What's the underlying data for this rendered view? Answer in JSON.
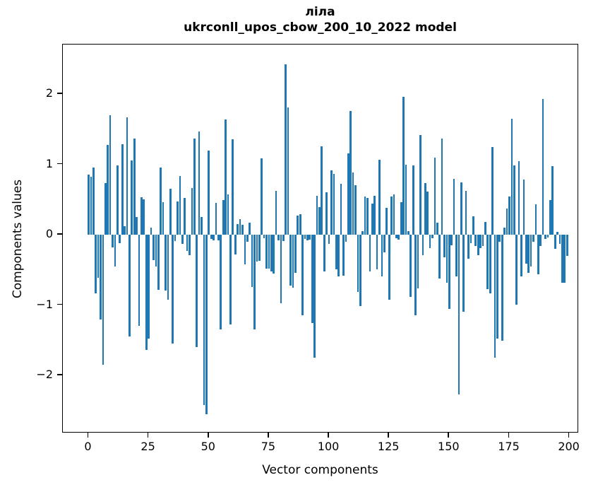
{
  "chart_data": {
    "type": "bar",
    "title_line1": "ліла",
    "title_line2": "ukrconll_upos_cbow_200_10_2022 model",
    "xlabel": "Vector components",
    "ylabel": "Components values",
    "x_description": "component indices 0 to 199",
    "values": [
      0.85,
      0.82,
      0.95,
      -0.83,
      -0.61,
      -1.21,
      -1.85,
      0.73,
      1.28,
      1.7,
      -0.18,
      -0.45,
      0.99,
      -0.12,
      1.29,
      0.12,
      1.67,
      -1.45,
      1.06,
      1.37,
      0.25,
      -1.3,
      0.53,
      0.5,
      -1.64,
      -1.48,
      0.1,
      -0.36,
      -0.45,
      -0.78,
      0.95,
      0.46,
      -0.79,
      -0.92,
      0.65,
      -1.55,
      -0.09,
      0.47,
      0.83,
      -0.13,
      0.52,
      -0.23,
      -0.29,
      0.66,
      1.37,
      -1.6,
      1.47,
      0.25,
      -2.42,
      -2.55,
      1.2,
      -0.06,
      -0.08,
      0.45,
      -0.08,
      -1.35,
      0.49,
      1.64,
      0.57,
      -1.28,
      1.36,
      -0.28,
      0.15,
      0.22,
      0.14,
      -0.42,
      -0.1,
      0.17,
      -0.74,
      -1.35,
      -0.38,
      -0.37,
      1.09,
      -0.05,
      -0.48,
      -0.48,
      -0.52,
      -0.55,
      0.62,
      -0.08,
      -0.97,
      -0.09,
      2.42,
      1.81,
      -0.72,
      -0.75,
      -0.54,
      0.27,
      0.29,
      -1.15,
      -0.06,
      -0.08,
      -0.07,
      -1.26,
      -1.75,
      0.55,
      0.39,
      1.26,
      -0.52,
      0.6,
      -0.13,
      0.91,
      0.86,
      -0.49,
      -0.59,
      0.72,
      -0.58,
      -0.1,
      1.16,
      1.76,
      0.88,
      0.7,
      -0.81,
      -1.01,
      0.05,
      0.54,
      0.52,
      -0.52,
      0.44,
      0.55,
      -0.49,
      1.07,
      -0.59,
      -0.25,
      0.38,
      -0.92,
      0.54,
      0.57,
      -0.05,
      -0.07,
      0.46,
      1.96,
      1.0,
      0.05,
      -0.88,
      0.98,
      -1.15,
      -0.76,
      1.42,
      -0.29,
      0.73,
      0.61,
      -0.19,
      -0.05,
      1.1,
      0.17,
      -0.62,
      1.37,
      -0.32,
      -0.68,
      -1.06,
      -0.15,
      0.79,
      -0.59,
      -2.27,
      0.74,
      -1.1,
      0.62,
      -0.34,
      -0.12,
      0.26,
      -0.16,
      -0.29,
      -0.19,
      -0.16,
      0.18,
      -0.77,
      -0.83,
      1.25,
      -1.75,
      -1.48,
      -0.1,
      -1.51,
      0.1,
      0.37,
      0.54,
      1.65,
      0.99,
      -0.99,
      1.05,
      -0.59,
      0.78,
      -0.41,
      -0.54,
      -0.45,
      -0.1,
      0.43,
      -0.56,
      -0.16,
      1.93,
      -0.06,
      -0.04,
      0.49,
      0.97,
      -0.2,
      0.04,
      -0.13,
      -0.68,
      -0.68,
      -0.3
    ],
    "bar_color": "#1f77b4",
    "xticks": [
      0,
      25,
      50,
      75,
      100,
      125,
      150,
      175,
      200
    ],
    "ytick_labels": [
      "2",
      "1",
      "0",
      "−1",
      "−2"
    ],
    "yticks": [
      2,
      1,
      0,
      -1,
      -2
    ],
    "xlim": [
      -10.6,
      203.8
    ],
    "ylim": [
      -2.82,
      2.7
    ],
    "grid": false,
    "legend_position": "none"
  }
}
